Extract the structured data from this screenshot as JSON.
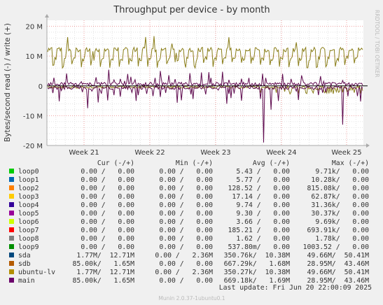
{
  "chart_data": {
    "type": "line",
    "title": "Throughput per device - by month",
    "ylabel": "Bytes/second read (-) / write (+)",
    "side_label": "RRDTOOL / TOBI OETIKER",
    "ylim": [
      -20000000,
      22000000
    ],
    "y_ticks": [
      {
        "value": 20000000,
        "label": "20 M"
      },
      {
        "value": 10000000,
        "label": "10 M"
      },
      {
        "value": 0,
        "label": "0"
      },
      {
        "value": -10000000,
        "label": "-10 M"
      },
      {
        "value": -20000000,
        "label": "-20 M"
      }
    ],
    "x_ticks": [
      "Week 21",
      "Week 22",
      "Week 23",
      "Week 24",
      "Week 25"
    ],
    "series": [
      {
        "name": "sdb",
        "color": "#8a7d18",
        "description": "write (+) about 10-13 M daily pattern, read (-) small"
      },
      {
        "name": "main",
        "color": "#5e0a4e",
        "description": "write (+) spikes up to ~4 M, read (-) dips to ~-19 M"
      }
    ]
  },
  "legend": {
    "headers": {
      "cur": "Cur (-/+)",
      "min": "Min (-/+)",
      "avg": "Avg (-/+)",
      "max": "Max (-/+)"
    },
    "rows": [
      {
        "name": "loop0",
        "color": "#00cc00",
        "cur": "0.00 /   0.00",
        "min": "0.00 /   0.00",
        "avg": "5.43 /   0.00",
        "max": "9.71k/   0.00"
      },
      {
        "name": "loop1",
        "color": "#0066b3",
        "cur": "0.00 /   0.00",
        "min": "0.00 /   0.00",
        "avg": "5.77 /   0.00",
        "max": "10.28k/   0.00"
      },
      {
        "name": "loop2",
        "color": "#ff8000",
        "cur": "0.00 /   0.00",
        "min": "0.00 /   0.00",
        "avg": "128.52 /   0.00",
        "max": "815.08k/   0.00"
      },
      {
        "name": "loop3",
        "color": "#ffcc00",
        "cur": "0.00 /   0.00",
        "min": "0.00 /   0.00",
        "avg": "17.14 /   0.00",
        "max": "62.87k/   0.00"
      },
      {
        "name": "loop4",
        "color": "#330099",
        "cur": "0.00 /   0.00",
        "min": "0.00 /   0.00",
        "avg": "9.74 /   0.00",
        "max": "31.36k/   0.00"
      },
      {
        "name": "loop5",
        "color": "#990099",
        "cur": "0.00 /   0.00",
        "min": "0.00 /   0.00",
        "avg": "9.30 /   0.00",
        "max": "30.37k/   0.00"
      },
      {
        "name": "loop6",
        "color": "#ccff00",
        "cur": "0.00 /   0.00",
        "min": "0.00 /   0.00",
        "avg": "3.66 /   0.00",
        "max": "9.69k/   0.00"
      },
      {
        "name": "loop7",
        "color": "#ff0000",
        "cur": "0.00 /   0.00",
        "min": "0.00 /   0.00",
        "avg": "185.21 /   0.00",
        "max": "693.91k/   0.00"
      },
      {
        "name": "loop8",
        "color": "#808080",
        "cur": "0.00 /   0.00",
        "min": "0.00 /   0.00",
        "avg": "1.62 /   0.00",
        "max": "1.78k/   0.00"
      },
      {
        "name": "loop9",
        "color": "#008f00",
        "cur": "0.00 /   0.00",
        "min": "0.00 /   0.00",
        "avg": "537.80m/   0.00",
        "max": "1003.52 /   0.00"
      },
      {
        "name": "sda",
        "color": "#00487d",
        "cur": "1.77M/  12.71M",
        "min": "0.00 /   2.36M",
        "avg": "350.76k/  10.38M",
        "max": "49.66M/  50.41M"
      },
      {
        "name": "sdb",
        "color": "#b35a00",
        "cur": "85.00k/   1.65M",
        "min": "0.00 /   0.00",
        "avg": "667.29k/   1.68M",
        "max": "28.95M/  43.46M"
      },
      {
        "name": "ubuntu-lv",
        "color": "#b38f00",
        "cur": "1.77M/  12.71M",
        "min": "0.00 /   2.36M",
        "avg": "350.27k/  10.38M",
        "max": "49.66M/  50.41M"
      },
      {
        "name": "main",
        "color": "#6b006b",
        "cur": "85.00k/   1.65M",
        "min": "0.00 /   0.00",
        "avg": "669.18k/   1.69M",
        "max": "28.95M/  43.46M"
      }
    ]
  },
  "last_update": "Last update: Fri Jun 20 22:00:09 2025",
  "footer": "Munin 2.0.37-1ubuntu0.1"
}
